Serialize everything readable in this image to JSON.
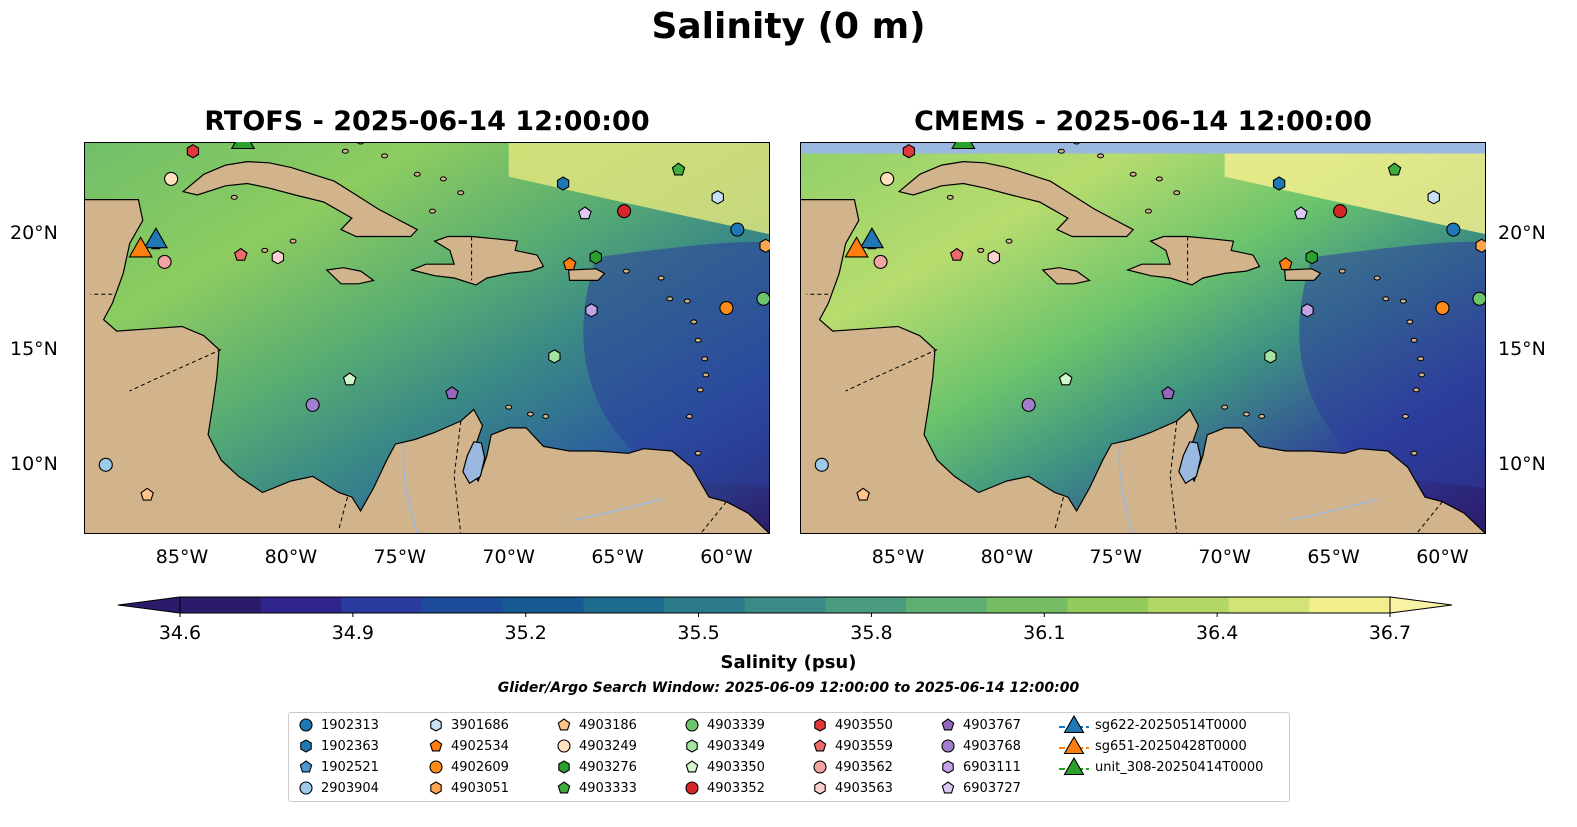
{
  "suptitle": "Salinity (0 m)",
  "panels": [
    {
      "id": "rtofs",
      "title": "RTOFS - 2025-06-14 12:00:00"
    },
    {
      "id": "cmems",
      "title": "CMEMS - 2025-06-14 12:00:00"
    }
  ],
  "axes": {
    "lon_ticks": [
      "85°W",
      "80°W",
      "75°W",
      "70°W",
      "65°W",
      "60°W"
    ],
    "lat_ticks": [
      "20°N",
      "15°N",
      "10°N"
    ],
    "lon_range": [
      -89.5,
      -58.0
    ],
    "lat_range": [
      7.0,
      24.0
    ]
  },
  "colorbar": {
    "title": "Salinity (psu)",
    "min": 34.6,
    "max": 36.7,
    "ticks": [
      "34.6",
      "34.9",
      "35.2",
      "35.5",
      "35.8",
      "36.1",
      "36.4",
      "36.7"
    ],
    "colors": [
      "#2c1a6b",
      "#2f238c",
      "#2a3a9f",
      "#1d4b9b",
      "#175a93",
      "#1d6b8e",
      "#2a7a8a",
      "#3a8a86",
      "#4b9b7e",
      "#5fae72",
      "#77bd66",
      "#93cb5f",
      "#b2d766",
      "#d3e377",
      "#f3ee8d"
    ]
  },
  "search_window": "Glider/Argo Search Window: 2025-06-09 12:00:00 to 2025-06-14 12:00:00",
  "legend": [
    {
      "label": "1902313",
      "shape": "circle",
      "color": "#1f77b4"
    },
    {
      "label": "1902363",
      "shape": "hexagon",
      "color": "#1f77b4"
    },
    {
      "label": "1902521",
      "shape": "pentagon",
      "color": "#4e98cf"
    },
    {
      "label": "2903904",
      "shape": "circle",
      "color": "#9ecae9"
    },
    {
      "label": "3901686",
      "shape": "hexagon",
      "color": "#c6e0f5"
    },
    {
      "label": "4902534",
      "shape": "pentagon",
      "color": "#ff7f0e"
    },
    {
      "label": "4902609",
      "shape": "circle",
      "color": "#ff8c1a"
    },
    {
      "label": "4903051",
      "shape": "hexagon",
      "color": "#ffa54f"
    },
    {
      "label": "4903186",
      "shape": "pentagon",
      "color": "#ffc48a"
    },
    {
      "label": "4903249",
      "shape": "circle",
      "color": "#ffe0bf"
    },
    {
      "label": "4903276",
      "shape": "hexagon",
      "color": "#2ca02c"
    },
    {
      "label": "4903333",
      "shape": "pentagon",
      "color": "#3fae3f"
    },
    {
      "label": "4903339",
      "shape": "circle",
      "color": "#6cc46c"
    },
    {
      "label": "4903349",
      "shape": "hexagon",
      "color": "#a6e3a0"
    },
    {
      "label": "4903350",
      "shape": "pentagon",
      "color": "#d3f5cc"
    },
    {
      "label": "4903352",
      "shape": "circle",
      "color": "#d62728"
    },
    {
      "label": "4903550",
      "shape": "hexagon",
      "color": "#e0393b"
    },
    {
      "label": "4903559",
      "shape": "pentagon",
      "color": "#ec6a6a"
    },
    {
      "label": "4903562",
      "shape": "circle",
      "color": "#f4a3a3"
    },
    {
      "label": "4903563",
      "shape": "hexagon",
      "color": "#fbd0d0"
    },
    {
      "label": "4903767",
      "shape": "pentagon",
      "color": "#9467bd"
    },
    {
      "label": "4903768",
      "shape": "circle",
      "color": "#a27fce"
    },
    {
      "label": "6903111",
      "shape": "hexagon",
      "color": "#c2a3e6"
    },
    {
      "label": "6903727",
      "shape": "pentagon",
      "color": "#ddc8f5"
    },
    {
      "label": "sg622-20250514T0000",
      "shape": "triangle",
      "color": "#1f77b4"
    },
    {
      "label": "sg651-20250428T0000",
      "shape": "triangle",
      "color": "#ff7f0e"
    },
    {
      "label": "unit_308-20250414T0000",
      "shape": "triangle",
      "color": "#2ca02c"
    }
  ],
  "markers": [
    {
      "id": "1902313",
      "lon": -59.5,
      "lat": 20.2
    },
    {
      "id": "1902363",
      "lon": -67.5,
      "lat": 22.2
    },
    {
      "id": "1902521",
      "lon": -86.2,
      "lat": 19.6
    },
    {
      "id": "2903904",
      "lon": -88.5,
      "lat": 10.0
    },
    {
      "id": "3901686",
      "lon": -60.4,
      "lat": 21.6
    },
    {
      "id": "4902534",
      "lon": -67.2,
      "lat": 18.7
    },
    {
      "id": "4902609",
      "lon": -60.0,
      "lat": 16.8
    },
    {
      "id": "4903051",
      "lon": -58.2,
      "lat": 19.5
    },
    {
      "id": "4903186",
      "lon": -86.6,
      "lat": 8.7
    },
    {
      "id": "4903249",
      "lon": -85.5,
      "lat": 22.4
    },
    {
      "id": "4903276",
      "lon": -66.0,
      "lat": 19.0
    },
    {
      "id": "4903333",
      "lon": -62.2,
      "lat": 22.8
    },
    {
      "id": "4903339",
      "lon": -58.3,
      "lat": 17.2
    },
    {
      "id": "4903349",
      "lon": -67.9,
      "lat": 14.7
    },
    {
      "id": "4903350",
      "lon": -77.3,
      "lat": 13.7
    },
    {
      "id": "4903352",
      "lon": -64.7,
      "lat": 21.0
    },
    {
      "id": "4903550",
      "lon": -84.5,
      "lat": 23.6
    },
    {
      "id": "4903559",
      "lon": -82.3,
      "lat": 19.1
    },
    {
      "id": "4903562",
      "lon": -85.8,
      "lat": 18.8
    },
    {
      "id": "4903563",
      "lon": -80.6,
      "lat": 19.0
    },
    {
      "id": "4903767",
      "lon": -72.6,
      "lat": 13.1
    },
    {
      "id": "4903768",
      "lon": -79.0,
      "lat": 12.6
    },
    {
      "id": "6903111",
      "lon": -66.2,
      "lat": 16.7
    },
    {
      "id": "6903727",
      "lon": -66.5,
      "lat": 20.9
    },
    {
      "id": "sg622-20250514T0000",
      "lon": -86.2,
      "lat": 19.7
    },
    {
      "id": "sg651-20250428T0000",
      "lon": -86.9,
      "lat": 19.3
    },
    {
      "id": "unit_308-20250414T0000",
      "lon": -82.2,
      "lat": 24.0
    }
  ]
}
